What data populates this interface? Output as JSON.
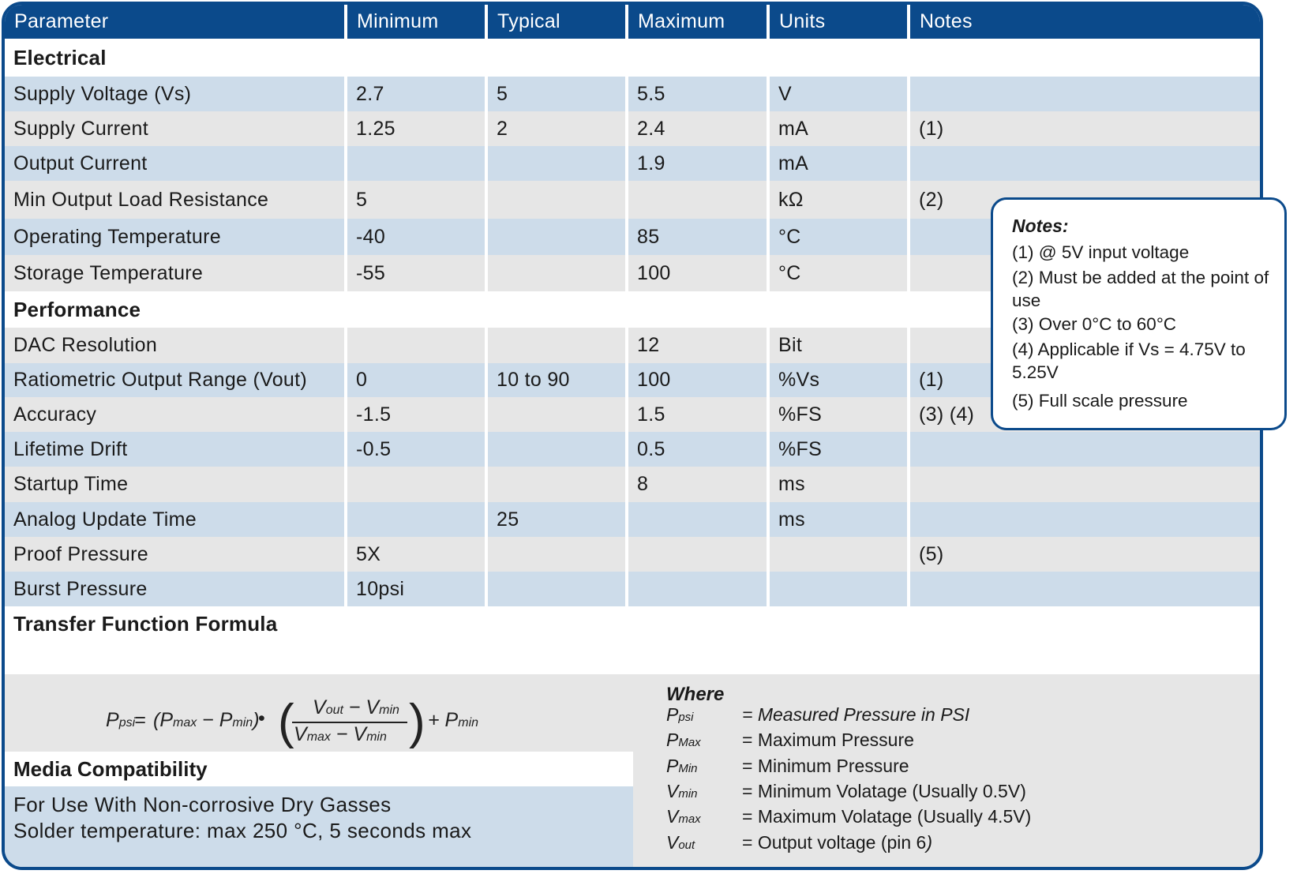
{
  "header": [
    "Parameter",
    "Minimum",
    "Typical",
    "Maximum",
    "Units",
    "Notes"
  ],
  "sections": {
    "electrical": "Electrical",
    "performance": "Performance",
    "transfer": "Transfer Function Formula",
    "media": "Media Compatibility"
  },
  "electrical_rows": [
    [
      "Supply Voltage (Vs)",
      "2.7",
      "5",
      "5.5",
      "V",
      ""
    ],
    [
      "Supply Current",
      "1.25",
      "2",
      "2.4",
      "mA",
      "(1)"
    ],
    [
      "Output Current",
      "",
      "",
      "1.9",
      "mA",
      ""
    ],
    [
      "Min Output Load Resistance",
      "5",
      "",
      "",
      "kΩ",
      "(2)"
    ],
    [
      "Operating Temperature",
      "-40",
      "",
      "85",
      "°C",
      ""
    ],
    [
      "Storage Temperature",
      "-55",
      "",
      "100",
      "°C",
      ""
    ]
  ],
  "performance_rows": [
    [
      "DAC Resolution",
      "",
      "",
      "12",
      "Bit",
      ""
    ],
    [
      "Ratiometric Output Range (Vout)",
      "0",
      "10 to 90",
      "100",
      "%Vs",
      "(1)"
    ],
    [
      "Accuracy",
      "-1.5",
      "",
      "1.5",
      "%FS",
      "(3) (4)"
    ],
    [
      "Lifetime Drift",
      "-0.5",
      "",
      "0.5",
      "%FS",
      ""
    ],
    [
      "Startup Time",
      "",
      "",
      "8",
      "ms",
      ""
    ],
    [
      "Analog Update Time",
      "",
      "25",
      "",
      "ms",
      ""
    ],
    [
      "Proof Pressure",
      "5X",
      "",
      "",
      "",
      "(5)"
    ],
    [
      "Burst Pressure",
      "10psi",
      "",
      "",
      "",
      ""
    ]
  ],
  "formula": {
    "lhs": "P",
    "lhs_sub": "psi",
    "eq": "=",
    "p1": "(P",
    "p1_sub": "max",
    "minus1": " − P",
    "p2_sub": "min",
    "close1": ")",
    "dot": "•",
    "num_a": "V",
    "num_a_sub": "out",
    "num_minus": " − V",
    "num_b_sub": "min",
    "den_a": "V",
    "den_a_sub": "max",
    "den_minus": " − V",
    "den_b_sub": "min",
    "plus": "+ P",
    "plus_sub": "min"
  },
  "media": {
    "line1": "For Use With Non-corrosive Dry Gasses",
    "line2": "Solder temperature:  max 250 °C, 5 seconds max"
  },
  "where": {
    "title": "Where",
    "rows": [
      {
        "sym": "P",
        "sub": "psi",
        "def": "= Measured Pressure in PSI",
        "italic": true
      },
      {
        "sym": "P",
        "sub": "Max",
        "def": "= Maximum Pressure",
        "italic": false
      },
      {
        "sym": "P",
        "sub": "Min",
        "def": "= Minimum Pressure",
        "italic": false
      },
      {
        "sym": "V",
        "sub": "min",
        "def": "= Minimum Volatage (Usually 0.5V)",
        "italic": false
      },
      {
        "sym": "V",
        "sub": "max",
        "def": "= Maximum Volatage (Usually 4.5V)",
        "italic": false
      },
      {
        "sym": "V",
        "sub": "out",
        "def": "= Output voltage (pin 6",
        "tail": ")",
        "italic": false
      }
    ]
  },
  "notes_box": {
    "title": "Notes:",
    "items": [
      "(1) @ 5V input voltage",
      "(2) Must be added at the point of use",
      "(3) Over  0°C to 60°C",
      "(4) Applicable if Vs = 4.75V to 5.25V",
      "(5) Full scale pressure"
    ]
  },
  "colors": {
    "header_blue": "#0b4a8b",
    "row_blue": "#cddcea",
    "row_gray": "#e6e6e6"
  }
}
